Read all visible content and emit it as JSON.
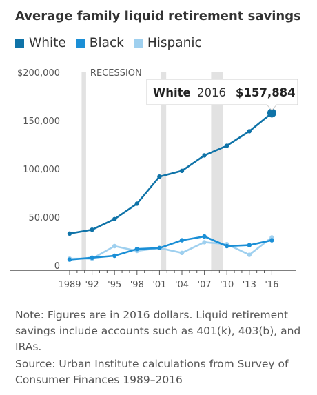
{
  "title": "Average family liquid retirement savings",
  "legend": [
    {
      "name": "White",
      "color": "#0f73a8"
    },
    {
      "name": "Black",
      "color": "#1b8fd6"
    },
    {
      "name": "Hispanic",
      "color": "#9fd0ef"
    }
  ],
  "note": "Note: Figures are in 2016 dollars. Liquid retirement savings include accounts such as 401(k), 403(b), and IRAs.",
  "source": "Source: Urban Institute calculations from Survey of Consumer Finances 1989–2016",
  "chart_data": {
    "type": "line",
    "title": "Average family liquid retirement savings",
    "x": [
      "1989",
      "'92",
      "'95",
      "'98",
      "'01",
      "'04",
      "'07",
      "'10",
      "'13",
      "'16"
    ],
    "ylim": [
      0,
      200000
    ],
    "y_ticks": [
      "$200,000",
      "150,000",
      "100,000",
      "50,000",
      "0"
    ],
    "recession_label": "RECESSION",
    "recessions": [
      [
        1990.6,
        1991.2
      ],
      [
        2001.2,
        2001.9
      ],
      [
        2007.9,
        2009.5
      ]
    ],
    "series": [
      {
        "name": "White",
        "color": "#0f73a8",
        "values": [
          33000,
          37000,
          48000,
          64000,
          92000,
          98000,
          114000,
          124000,
          139000,
          157884
        ]
      },
      {
        "name": "Black",
        "color": "#1b8fd6",
        "values": [
          6000,
          8000,
          10000,
          17000,
          18000,
          26000,
          30000,
          20000,
          21000,
          26000
        ]
      },
      {
        "name": "Hispanic",
        "color": "#9fd0ef",
        "values": [
          7000,
          7000,
          20000,
          15000,
          18000,
          13000,
          24000,
          22000,
          11000,
          29000
        ]
      }
    ],
    "annotation": {
      "series": "White",
      "x_label": "2016",
      "value_label": "$157,884"
    }
  }
}
